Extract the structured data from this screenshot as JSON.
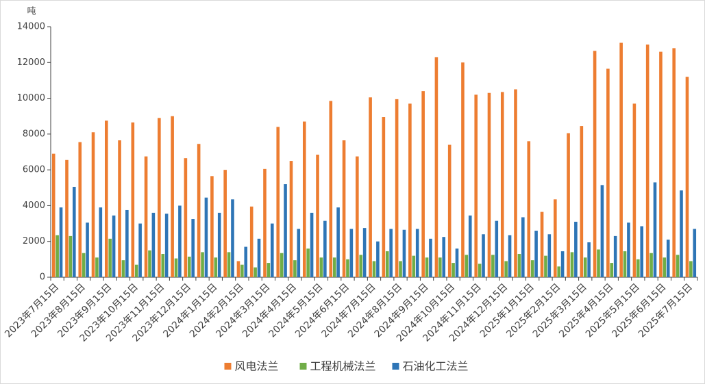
{
  "chart_data": {
    "type": "bar",
    "y_label": "吨",
    "categories": [
      "2023年7月15日",
      null,
      "2023年8月15日",
      null,
      "2023年9月15日",
      null,
      "2023年10月15日",
      null,
      "2023年11月15日",
      null,
      "2023年12月15日",
      null,
      "2024年1月15日",
      null,
      "2024年2月15日",
      null,
      "2024年3月15日",
      null,
      "2024年4月15日",
      null,
      "2024年5月15日",
      null,
      "2024年6月15日",
      null,
      "2024年7月15日",
      null,
      "2024年8月15日",
      null,
      "2024年9月15日",
      null,
      "2024年10月15日",
      null,
      "2024年11月15日",
      null,
      "2024年12月15日",
      null,
      "2025年1月15日",
      null,
      "2025年2月15日",
      null,
      "2025年3月15日",
      null,
      "2025年4月15日",
      null,
      "2025年5月15日",
      null,
      "2025年6月15日",
      null,
      "2025年7月15日"
    ],
    "series": [
      {
        "name": "风电法兰",
        "color": "#ed7d31",
        "values": [
          6900,
          6550,
          7550,
          8100,
          8750,
          7650,
          8650,
          6750,
          8900,
          9000,
          6650,
          7450,
          5650,
          6000,
          900,
          3950,
          6050,
          8400,
          6500,
          8700,
          6850,
          9850,
          7650,
          6750,
          10050,
          8950,
          9950,
          9700,
          10400,
          12300,
          7400,
          12000,
          10200,
          10300,
          10350,
          10500,
          7600,
          3650,
          4350,
          8050,
          8450,
          12650,
          11650,
          13100,
          9700,
          13000,
          12600,
          12800,
          11200
        ]
      },
      {
        "name": "工程机械法兰",
        "color": "#70ad47",
        "values": [
          2350,
          2300,
          1350,
          1100,
          2150,
          950,
          700,
          1500,
          1300,
          1050,
          1150,
          1400,
          1100,
          1400,
          700,
          550,
          800,
          1350,
          950,
          1600,
          1100,
          1100,
          1000,
          1250,
          900,
          1450,
          900,
          1200,
          1100,
          1100,
          800,
          1250,
          750,
          1250,
          900,
          1300,
          950,
          1200,
          600,
          1400,
          1100,
          1550,
          800,
          1450,
          1000,
          1350,
          1100,
          1250,
          900
        ]
      },
      {
        "name": "石油化工法兰",
        "color": "#2e75b6",
        "values": [
          3900,
          5050,
          3050,
          3900,
          3450,
          3750,
          3000,
          3600,
          3550,
          4000,
          3250,
          4450,
          3600,
          4350,
          1700,
          2150,
          3000,
          5200,
          2700,
          3600,
          3150,
          3900,
          2700,
          2750,
          2000,
          2700,
          2650,
          2700,
          2150,
          2250,
          1600,
          3450,
          2400,
          3150,
          2350,
          3350,
          2600,
          2400,
          1450,
          3100,
          1950,
          5150,
          2300,
          3050,
          2850,
          5300,
          2100,
          4850,
          2700
        ]
      }
    ],
    "ylim": [
      0,
      14000
    ],
    "yticks": [
      0,
      2000,
      4000,
      6000,
      8000,
      10000,
      12000,
      14000
    ],
    "grid": false,
    "legend": "bottom"
  }
}
